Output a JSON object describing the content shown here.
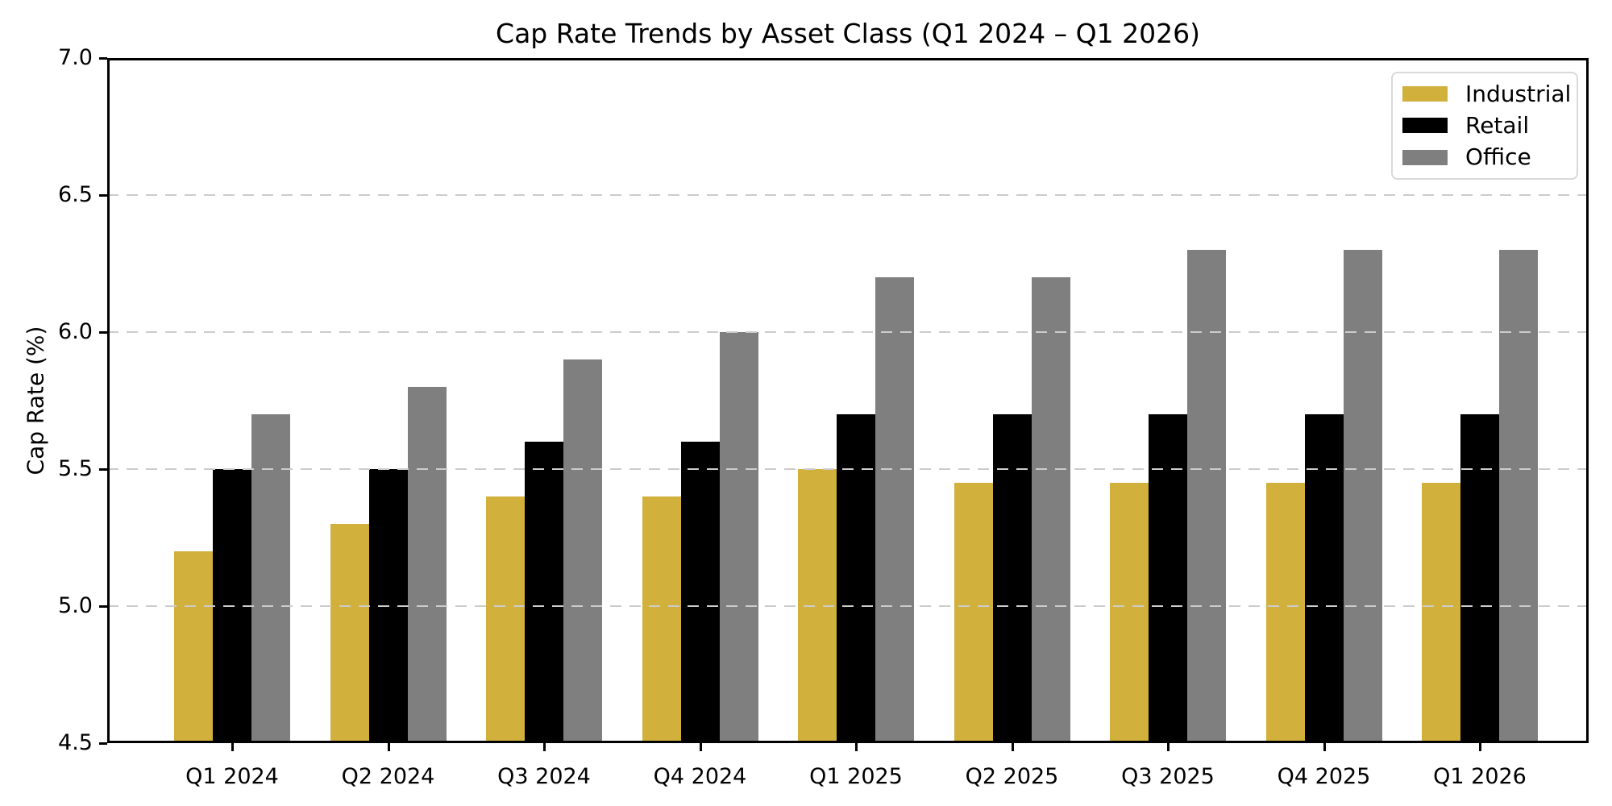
{
  "chart_data": {
    "type": "bar",
    "title": "Cap Rate Trends by Asset Class (Q1 2024 – Q1 2026)",
    "xlabel": "",
    "ylabel": "Cap Rate (%)",
    "categories": [
      "Q1 2024",
      "Q2 2024",
      "Q3 2024",
      "Q4 2024",
      "Q1 2025",
      "Q2 2025",
      "Q3 2025",
      "Q4 2025",
      "Q1 2026"
    ],
    "series": [
      {
        "name": "Industrial",
        "color": "#D2B03C",
        "values": [
          5.2,
          5.3,
          5.4,
          5.4,
          5.5,
          5.45,
          5.45,
          5.45,
          5.45
        ]
      },
      {
        "name": "Retail",
        "color": "#000000",
        "values": [
          5.5,
          5.5,
          5.6,
          5.6,
          5.7,
          5.7,
          5.7,
          5.7,
          5.7
        ]
      },
      {
        "name": "Office",
        "color": "#7F7F7F",
        "values": [
          5.7,
          5.8,
          5.9,
          6.0,
          6.2,
          6.2,
          6.3,
          6.3,
          6.3
        ]
      }
    ],
    "ylim": [
      4.5,
      7.0
    ],
    "yticks": [
      4.5,
      5.0,
      5.5,
      6.0,
      6.5,
      7.0
    ],
    "ytick_format_decimals": 1,
    "grid": "horizontal-dashed",
    "grid_color": "#CCCCCC",
    "axis_color": "#000000",
    "background_color": "#FFFFFF",
    "legend_position": "upper right",
    "legend_border_color": "#D9D9D9"
  }
}
